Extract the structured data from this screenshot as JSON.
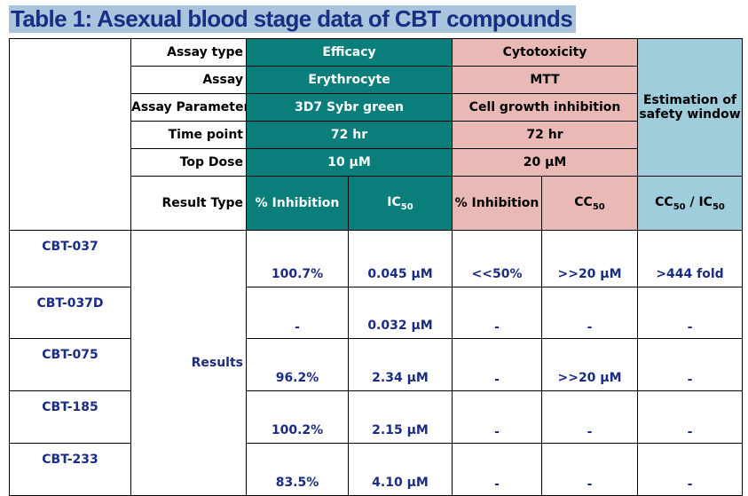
{
  "title": "Table 1: Asexual blood stage data of CBT compounds",
  "header": {
    "labels": {
      "assay_type": "Assay type",
      "assay": "Assay",
      "assay_parameter": "Assay Parameter",
      "time_point": "Time point",
      "top_dose": "Top Dose",
      "result_type": "Result Type"
    },
    "efficacy": {
      "assay_type": "Efficacy",
      "assay": "Erythrocyte",
      "parameter": "3D7 Sybr green",
      "time_point": "72 hr",
      "top_dose": "10 µM",
      "col1": "% Inhibition",
      "col2": "IC50"
    },
    "cytotoxicity": {
      "assay_type": "Cytotoxicity",
      "assay": "MTT",
      "parameter": "Cell growth inhibition",
      "time_point": "72 hr",
      "top_dose": "20 µM",
      "col1": "% Inhibition",
      "col2": "CC50"
    },
    "safety": {
      "line1": "Estimation of",
      "line2": "safety window",
      "col": "CC50 / IC50"
    }
  },
  "results_label": "Results",
  "rows": [
    {
      "compound": "CBT-037",
      "eff_inhibition": "100.7%",
      "ic50": "0.045 µM",
      "cyto_inhibition": "<<50%",
      "cc50": ">>20 µM",
      "safety": ">444 fold"
    },
    {
      "compound": "CBT-037D",
      "eff_inhibition": "-",
      "ic50": "0.032 µM",
      "cyto_inhibition": "-",
      "cc50": "-",
      "safety": "-"
    },
    {
      "compound": "CBT-075",
      "eff_inhibition": "96.2%",
      "ic50": "2.34 µM",
      "cyto_inhibition": "-",
      "cc50": ">>20 µM",
      "safety": "-"
    },
    {
      "compound": "CBT-185",
      "eff_inhibition": "100.2%",
      "ic50": "2.15 µM",
      "cyto_inhibition": "-",
      "cc50": "-",
      "safety": "-"
    },
    {
      "compound": "CBT-233",
      "eff_inhibition": "83.5%",
      "ic50": "4.10 µM",
      "cyto_inhibition": "-",
      "cc50": "-",
      "safety": "-"
    }
  ],
  "colors": {
    "title_bg": "#a9c4dc",
    "title_text": "#1a2c83",
    "efficacy_bg": "#0a7e7b",
    "cytotoxicity_bg": "#e9b9b5",
    "safety_bg": "#9fcddc",
    "data_text": "#1a2c83"
  }
}
